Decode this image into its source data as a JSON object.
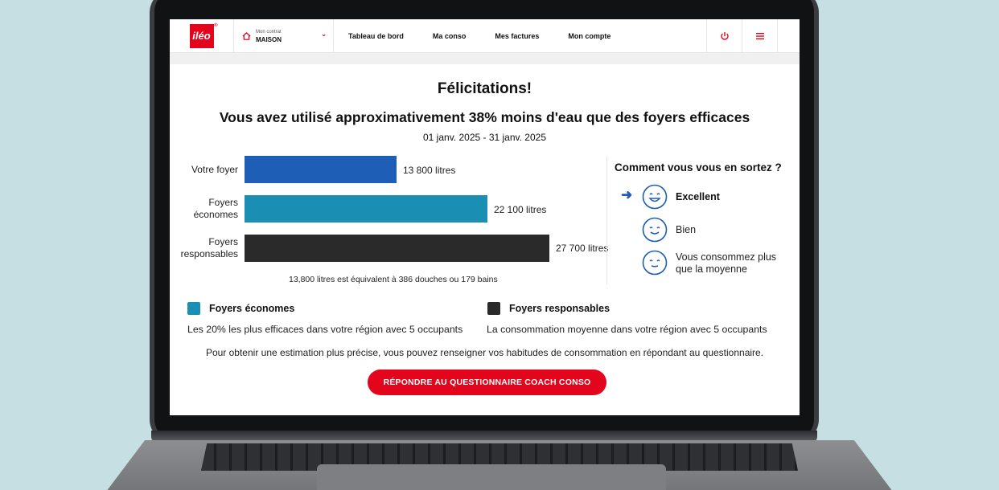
{
  "header": {
    "logo_text": "iléo",
    "logo_sup": "®",
    "contract_small": "Mon contrat",
    "contract_name": "MAISON",
    "nav": [
      "Tableau de bord",
      "Ma conso",
      "Mes factures",
      "Mon compte"
    ],
    "icons": [
      "power-icon",
      "menu-icon"
    ]
  },
  "main": {
    "title": "Félicitations!",
    "headline": "Vous avez utilisé approximativement 38% moins d'eau que des foyers efficaces",
    "period": "01 janv. 2025 - 31 janv. 2025",
    "equivalence": "13,800 litres est équivalent à 386 douches ou 179 bains"
  },
  "chart_data": {
    "type": "bar",
    "orientation": "horizontal",
    "categories": [
      "Votre foyer",
      "Foyers économes",
      "Foyers responsables"
    ],
    "values": [
      13800,
      22100,
      27700
    ],
    "value_labels": [
      "13 800 litres",
      "22 100 litres",
      "27 700 litres"
    ],
    "colors": [
      "#1e5eb6",
      "#1b8fb3",
      "#2a2a2a"
    ],
    "xlim": [
      0,
      28800
    ]
  },
  "rating": {
    "title": "Comment vous vous en sortez ?",
    "selected_index": 0,
    "items": [
      {
        "label": "Excellent",
        "icon": "smiley-excellent-icon"
      },
      {
        "label": "Bien",
        "icon": "smiley-bien-icon"
      },
      {
        "label_line1": "Vous consommez plus",
        "label_line2": "que la moyenne",
        "icon": "smiley-neutral-icon"
      }
    ]
  },
  "legend": [
    {
      "name": "Foyers économes",
      "desc": "Les 20% les plus efficaces dans votre région avec 5 occupants",
      "color": "#1b8fb3"
    },
    {
      "name": "Foyers responsables",
      "desc": "La consommation moyenne dans votre région avec 5 occupants",
      "color": "#2a2a2a"
    }
  ],
  "info_text": "Pour obtenir une estimation plus précise, vous pouvez renseigner vos habitudes de consommation en répondant au questionnaire.",
  "cta_label": "RÉPONDRE AU QUESTIONNAIRE COACH CONSO",
  "colors": {
    "brand": "#e3051b",
    "accent_blue": "#1e5eb6"
  }
}
